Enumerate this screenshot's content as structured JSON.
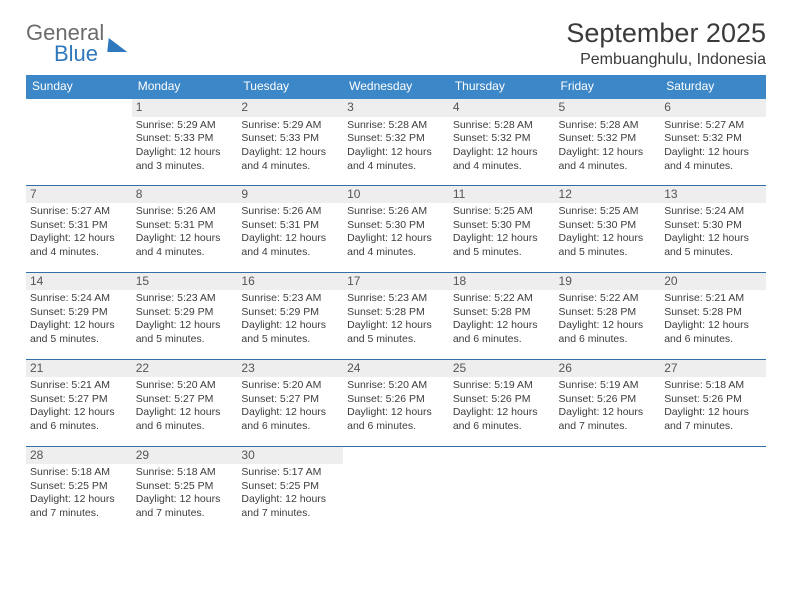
{
  "brand": {
    "word1": "General",
    "word2": "Blue"
  },
  "title": "September 2025",
  "location": "Pembuanghulu, Indonesia",
  "colors": {
    "header_bg": "#3c87c7",
    "header_text": "#ffffff",
    "row_divider": "#356fa8",
    "daynum_bg": "#eeeeee",
    "body_text": "#3d3d3d",
    "brand_blue": "#2f78bd",
    "brand_gray": "#6c6c6c",
    "page_bg": "#ffffff"
  },
  "typography": {
    "title_fontsize": 27,
    "subtitle_fontsize": 16,
    "dayheader_fontsize": 12,
    "cell_fontsize": 10.5
  },
  "weekday_labels": [
    "Sunday",
    "Monday",
    "Tuesday",
    "Wednesday",
    "Thursday",
    "Friday",
    "Saturday"
  ],
  "weeks": [
    [
      null,
      {
        "n": "1",
        "sr": "5:29 AM",
        "ss": "5:33 PM",
        "dl": "12 hours and 3 minutes."
      },
      {
        "n": "2",
        "sr": "5:29 AM",
        "ss": "5:33 PM",
        "dl": "12 hours and 4 minutes."
      },
      {
        "n": "3",
        "sr": "5:28 AM",
        "ss": "5:32 PM",
        "dl": "12 hours and 4 minutes."
      },
      {
        "n": "4",
        "sr": "5:28 AM",
        "ss": "5:32 PM",
        "dl": "12 hours and 4 minutes."
      },
      {
        "n": "5",
        "sr": "5:28 AM",
        "ss": "5:32 PM",
        "dl": "12 hours and 4 minutes."
      },
      {
        "n": "6",
        "sr": "5:27 AM",
        "ss": "5:32 PM",
        "dl": "12 hours and 4 minutes."
      }
    ],
    [
      {
        "n": "7",
        "sr": "5:27 AM",
        "ss": "5:31 PM",
        "dl": "12 hours and 4 minutes."
      },
      {
        "n": "8",
        "sr": "5:26 AM",
        "ss": "5:31 PM",
        "dl": "12 hours and 4 minutes."
      },
      {
        "n": "9",
        "sr": "5:26 AM",
        "ss": "5:31 PM",
        "dl": "12 hours and 4 minutes."
      },
      {
        "n": "10",
        "sr": "5:26 AM",
        "ss": "5:30 PM",
        "dl": "12 hours and 4 minutes."
      },
      {
        "n": "11",
        "sr": "5:25 AM",
        "ss": "5:30 PM",
        "dl": "12 hours and 5 minutes."
      },
      {
        "n": "12",
        "sr": "5:25 AM",
        "ss": "5:30 PM",
        "dl": "12 hours and 5 minutes."
      },
      {
        "n": "13",
        "sr": "5:24 AM",
        "ss": "5:30 PM",
        "dl": "12 hours and 5 minutes."
      }
    ],
    [
      {
        "n": "14",
        "sr": "5:24 AM",
        "ss": "5:29 PM",
        "dl": "12 hours and 5 minutes."
      },
      {
        "n": "15",
        "sr": "5:23 AM",
        "ss": "5:29 PM",
        "dl": "12 hours and 5 minutes."
      },
      {
        "n": "16",
        "sr": "5:23 AM",
        "ss": "5:29 PM",
        "dl": "12 hours and 5 minutes."
      },
      {
        "n": "17",
        "sr": "5:23 AM",
        "ss": "5:28 PM",
        "dl": "12 hours and 5 minutes."
      },
      {
        "n": "18",
        "sr": "5:22 AM",
        "ss": "5:28 PM",
        "dl": "12 hours and 6 minutes."
      },
      {
        "n": "19",
        "sr": "5:22 AM",
        "ss": "5:28 PM",
        "dl": "12 hours and 6 minutes."
      },
      {
        "n": "20",
        "sr": "5:21 AM",
        "ss": "5:28 PM",
        "dl": "12 hours and 6 minutes."
      }
    ],
    [
      {
        "n": "21",
        "sr": "5:21 AM",
        "ss": "5:27 PM",
        "dl": "12 hours and 6 minutes."
      },
      {
        "n": "22",
        "sr": "5:20 AM",
        "ss": "5:27 PM",
        "dl": "12 hours and 6 minutes."
      },
      {
        "n": "23",
        "sr": "5:20 AM",
        "ss": "5:27 PM",
        "dl": "12 hours and 6 minutes."
      },
      {
        "n": "24",
        "sr": "5:20 AM",
        "ss": "5:26 PM",
        "dl": "12 hours and 6 minutes."
      },
      {
        "n": "25",
        "sr": "5:19 AM",
        "ss": "5:26 PM",
        "dl": "12 hours and 6 minutes."
      },
      {
        "n": "26",
        "sr": "5:19 AM",
        "ss": "5:26 PM",
        "dl": "12 hours and 7 minutes."
      },
      {
        "n": "27",
        "sr": "5:18 AM",
        "ss": "5:26 PM",
        "dl": "12 hours and 7 minutes."
      }
    ],
    [
      {
        "n": "28",
        "sr": "5:18 AM",
        "ss": "5:25 PM",
        "dl": "12 hours and 7 minutes."
      },
      {
        "n": "29",
        "sr": "5:18 AM",
        "ss": "5:25 PM",
        "dl": "12 hours and 7 minutes."
      },
      {
        "n": "30",
        "sr": "5:17 AM",
        "ss": "5:25 PM",
        "dl": "12 hours and 7 minutes."
      },
      null,
      null,
      null,
      null
    ]
  ],
  "labels": {
    "sunrise": "Sunrise:",
    "sunset": "Sunset:",
    "daylight": "Daylight:"
  }
}
